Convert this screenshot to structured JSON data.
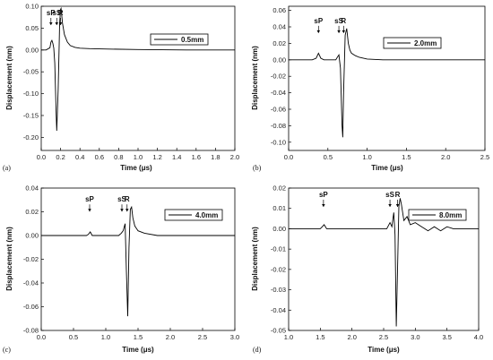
{
  "chart_data": [
    {
      "type": "line",
      "panel_label": "(a)",
      "legend": "0.5mm",
      "legend_placement": "top-right",
      "xlabel": "Time (μs)",
      "ylabel": "Displacement (nm)",
      "xlim": [
        0.0,
        2.0
      ],
      "ylim": [
        -0.23,
        0.1
      ],
      "xticks": [
        "0.0",
        "0.2",
        "0.4",
        "0.6",
        "0.8",
        "1.0",
        "1.2",
        "1.4",
        "1.6",
        "1.8",
        "2.0"
      ],
      "yticks": [
        "0.10",
        "0.05",
        "0.00",
        "-0.05",
        "-0.10",
        "-0.15",
        "-0.20"
      ],
      "xtick_values": [
        0.0,
        0.2,
        0.4,
        0.6,
        0.8,
        1.0,
        1.2,
        1.4,
        1.6,
        1.8,
        2.0
      ],
      "ytick_values": [
        0.1,
        0.05,
        0.0,
        -0.05,
        -0.1,
        -0.15,
        -0.2
      ],
      "annotations": [
        {
          "text": "sP",
          "x": 0.1
        },
        {
          "text": "sS",
          "x": 0.16
        },
        {
          "text": "R",
          "x": 0.2
        }
      ],
      "series": [
        {
          "x": [
            0.0,
            0.05,
            0.09,
            0.1,
            0.11,
            0.12,
            0.13,
            0.14,
            0.155,
            0.16,
            0.175,
            0.185,
            0.19,
            0.2,
            0.205,
            0.22,
            0.24,
            0.27,
            0.3,
            0.35,
            0.4,
            0.5,
            0.7,
            1.0,
            1.5,
            2.0
          ],
          "y": [
            0.0,
            0.0,
            0.005,
            0.018,
            0.022,
            0.015,
            0.004,
            -0.03,
            -0.15,
            -0.185,
            -0.09,
            0.01,
            0.06,
            0.093,
            0.095,
            0.06,
            0.035,
            0.018,
            0.01,
            0.006,
            0.004,
            0.003,
            0.002,
            0.001,
            0.0,
            0.0
          ]
        }
      ]
    },
    {
      "type": "line",
      "panel_label": "(b)",
      "legend": "2.0mm",
      "legend_placement": "top-right",
      "xlabel": "Time (μs)",
      "ylabel": "Displacement (nm)",
      "xlim": [
        0.0,
        2.5
      ],
      "ylim": [
        -0.11,
        0.065
      ],
      "xticks": [
        "0.0",
        "0.5",
        "1.0",
        "1.5",
        "2.0",
        "2.5"
      ],
      "yticks": [
        "0.06",
        "0.04",
        "0.02",
        "0.00",
        "-0.02",
        "-0.04",
        "-0.06",
        "-0.08",
        "-0.10"
      ],
      "xtick_values": [
        0.0,
        0.5,
        1.0,
        1.5,
        2.0,
        2.5
      ],
      "ytick_values": [
        0.06,
        0.04,
        0.02,
        0.0,
        -0.02,
        -0.04,
        -0.06,
        -0.08,
        -0.1
      ],
      "annotations": [
        {
          "text": "sP",
          "x": 0.38
        },
        {
          "text": "sS",
          "x": 0.64
        },
        {
          "text": "R",
          "x": 0.7
        }
      ],
      "series": [
        {
          "x": [
            0.0,
            0.3,
            0.35,
            0.38,
            0.41,
            0.45,
            0.6,
            0.62,
            0.64,
            0.66,
            0.68,
            0.69,
            0.7,
            0.72,
            0.74,
            0.76,
            0.78,
            0.8,
            0.85,
            0.9,
            1.0,
            1.2,
            1.5,
            2.0,
            2.5
          ],
          "y": [
            0.0,
            0.0,
            0.002,
            0.008,
            0.002,
            0.0,
            0.0,
            0.003,
            0.006,
            -0.01,
            -0.08,
            -0.094,
            -0.04,
            0.03,
            0.038,
            0.02,
            0.012,
            0.008,
            0.005,
            0.003,
            0.001,
            0.0,
            0.0,
            0.0,
            0.0
          ]
        }
      ]
    },
    {
      "type": "line",
      "panel_label": "(c)",
      "legend": "4.0mm",
      "legend_placement": "top-right",
      "xlabel": "Time (μs)",
      "ylabel": "Displacement (nm)",
      "xlim": [
        0.0,
        3.0
      ],
      "ylim": [
        -0.08,
        0.04
      ],
      "xticks": [
        "0.0",
        "0.5",
        "1.0",
        "1.5",
        "2.0",
        "2.5",
        "3.0"
      ],
      "yticks": [
        "0.04",
        "0.02",
        "0.00",
        "-0.02",
        "-0.04",
        "-0.06",
        "-0.08"
      ],
      "xtick_values": [
        0.0,
        0.5,
        1.0,
        1.5,
        2.0,
        2.5,
        3.0
      ],
      "ytick_values": [
        0.04,
        0.02,
        0.0,
        -0.02,
        -0.04,
        -0.06,
        -0.08
      ],
      "annotations": [
        {
          "text": "sP",
          "x": 0.75
        },
        {
          "text": "sS",
          "x": 1.25
        },
        {
          "text": "R",
          "x": 1.33
        }
      ],
      "series": [
        {
          "x": [
            0.0,
            0.7,
            0.73,
            0.76,
            0.79,
            0.85,
            1.2,
            1.24,
            1.27,
            1.3,
            1.32,
            1.34,
            1.36,
            1.38,
            1.4,
            1.42,
            1.45,
            1.5,
            1.6,
            1.8,
            2.0,
            2.5,
            3.0
          ],
          "y": [
            0.0,
            0.0,
            0.001,
            0.003,
            0.0,
            0.0,
            0.0,
            0.002,
            0.004,
            0.01,
            -0.03,
            -0.068,
            -0.01,
            0.022,
            0.024,
            0.015,
            0.008,
            0.004,
            0.002,
            0.0,
            0.0,
            0.0,
            0.0
          ]
        }
      ]
    },
    {
      "type": "line",
      "panel_label": "(d)",
      "legend": "8.0mm",
      "legend_placement": "top-right",
      "xlabel": "Time (μs)",
      "ylabel": "Displacement (nm)",
      "xlim": [
        1.0,
        4.0
      ],
      "ylim": [
        -0.05,
        0.02
      ],
      "xticks": [
        "1.0",
        "1.5",
        "2.0",
        "2.5",
        "3.0",
        "3.5",
        "4.0"
      ],
      "yticks": [
        "0.02",
        "0.01",
        "0.00",
        "-0.01",
        "-0.02",
        "-0.03",
        "-0.04",
        "-0.05"
      ],
      "xtick_values": [
        1.0,
        1.5,
        2.0,
        2.5,
        3.0,
        3.5,
        4.0
      ],
      "ytick_values": [
        0.02,
        0.01,
        0.0,
        -0.01,
        -0.02,
        -0.03,
        -0.04,
        -0.05
      ],
      "annotations": [
        {
          "text": "sP",
          "x": 1.55
        },
        {
          "text": "sS",
          "x": 2.6
        },
        {
          "text": "R",
          "x": 2.72
        }
      ],
      "series": [
        {
          "x": [
            1.0,
            1.5,
            1.53,
            1.56,
            1.6,
            2.55,
            2.6,
            2.63,
            2.66,
            2.68,
            2.7,
            2.72,
            2.74,
            2.76,
            2.78,
            2.82,
            2.87,
            2.92,
            3.0,
            3.1,
            3.2,
            3.3,
            3.4,
            3.5,
            3.6,
            3.7,
            3.8,
            3.9,
            4.0
          ],
          "y": [
            0.0,
            0.0,
            0.001,
            0.002,
            0.0,
            0.0,
            0.003,
            0.001,
            0.008,
            -0.003,
            -0.048,
            -0.02,
            0.011,
            0.015,
            0.012,
            0.004,
            0.006,
            0.002,
            0.003,
            0.001,
            -0.001,
            0.001,
            -0.001,
            0.001,
            0.0,
            0.0,
            0.0,
            0.0,
            0.0
          ]
        }
      ]
    }
  ]
}
